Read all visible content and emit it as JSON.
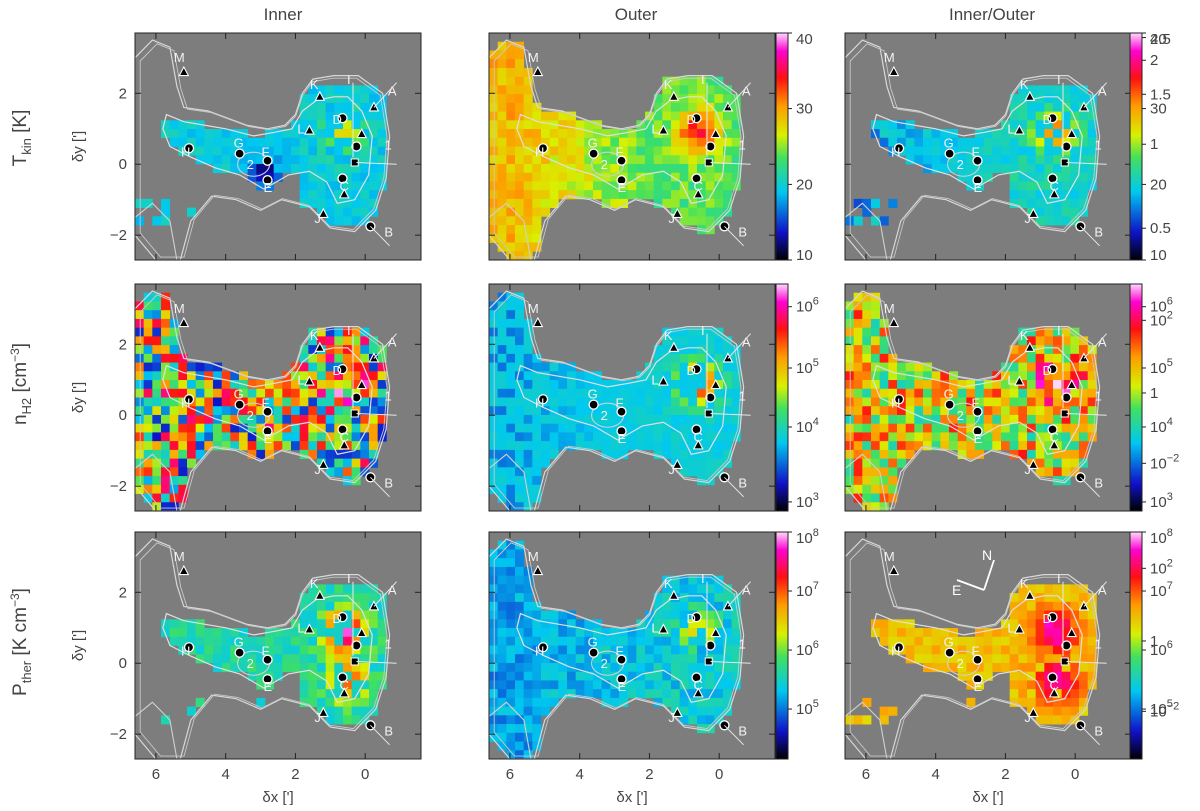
{
  "column_titles": [
    "Inner",
    "Outer",
    "Inner/Outer"
  ],
  "row_labels": [
    {
      "base": "T",
      "sub": "kin",
      "unit": "[K]"
    },
    {
      "base": "n",
      "sub": "H2",
      "unit": "[cm",
      "unit_sup": "−3",
      "unit_end": "]"
    },
    {
      "base": "P",
      "sub": "ther",
      "unit": "[K cm",
      "unit_sup": "−3",
      "unit_end": "]"
    }
  ],
  "axes": {
    "xlabel": "δx [']",
    "ylabel": "δy [']",
    "x_ticks": [
      "6",
      "4",
      "2",
      "0"
    ],
    "y_ticks": [
      "2",
      "0",
      "−2"
    ]
  },
  "colorbars": [
    [
      {
        "scale": "linear",
        "ticks": [
          {
            "v": "40",
            "f": 0.0
          },
          {
            "v": "30",
            "f": 0.333
          },
          {
            "v": "20",
            "f": 0.667
          },
          {
            "v": "10",
            "f": 1.0
          }
        ]
      },
      {
        "scale": "linear",
        "ticks": [
          {
            "v": "40",
            "f": 0.0
          },
          {
            "v": "30",
            "f": 0.333
          },
          {
            "v": "20",
            "f": 0.667
          },
          {
            "v": "10",
            "f": 1.0
          }
        ]
      },
      {
        "scale": "log",
        "ticks": [
          {
            "v": "2.5",
            "f": 0.02
          },
          {
            "v": "2",
            "f": 0.12
          },
          {
            "v": "1.5",
            "f": 0.27
          },
          {
            "v": "1",
            "f": 0.49
          },
          {
            "v": "0.5",
            "f": 0.86
          }
        ]
      }
    ],
    [
      {
        "scale": "log",
        "ticks": [
          {
            "v": "10",
            "sup": "6",
            "f": 0.1
          },
          {
            "v": "10",
            "sup": "5",
            "f": 0.37
          },
          {
            "v": "10",
            "sup": "4",
            "f": 0.63
          },
          {
            "v": "10",
            "sup": "3",
            "f": 0.96
          }
        ]
      },
      {
        "scale": "log",
        "ticks": [
          {
            "v": "10",
            "sup": "6",
            "f": 0.1
          },
          {
            "v": "10",
            "sup": "5",
            "f": 0.37
          },
          {
            "v": "10",
            "sup": "4",
            "f": 0.63
          },
          {
            "v": "10",
            "sup": "3",
            "f": 0.96
          }
        ]
      },
      {
        "scale": "log",
        "ticks": [
          {
            "v": "10",
            "sup": "2",
            "f": 0.16
          },
          {
            "v": "1",
            "f": 0.48
          },
          {
            "v": "10",
            "sup": "−2",
            "f": 0.79
          }
        ]
      }
    ],
    [
      {
        "scale": "log",
        "ticks": [
          {
            "v": "10",
            "sup": "8",
            "f": 0.0
          },
          {
            "v": "10",
            "sup": "7",
            "f": 0.26
          },
          {
            "v": "10",
            "sup": "6",
            "f": 0.52
          },
          {
            "v": "10",
            "sup": "5",
            "f": 0.78
          }
        ]
      },
      {
        "scale": "log",
        "ticks": [
          {
            "v": "10",
            "sup": "8",
            "f": 0.0
          },
          {
            "v": "10",
            "sup": "7",
            "f": 0.26
          },
          {
            "v": "10",
            "sup": "6",
            "f": 0.52
          },
          {
            "v": "10",
            "sup": "5",
            "f": 0.78
          }
        ]
      },
      {
        "scale": "log",
        "ticks": [
          {
            "v": "10",
            "sup": "2",
            "f": 0.16
          },
          {
            "v": "1",
            "f": 0.48
          },
          {
            "v": "10",
            "sup": "−2",
            "f": 0.79
          }
        ]
      }
    ]
  ],
  "compass": {
    "north": "N",
    "east": "E"
  },
  "chart_data": {
    "type": "heatmap",
    "x_range": [
      6.6,
      -1.6
    ],
    "y_range": [
      -2.7,
      3.7
    ],
    "columns": [
      "Inner",
      "Outer",
      "Inner/Outer"
    ],
    "rows": [
      "T_kin [K]",
      "n_H2 [cm^-3]",
      "P_ther [K cm^-3]"
    ],
    "colorbar_ranges": [
      [
        [
          10,
          40
        ],
        [
          10,
          40
        ],
        [
          0.4,
          2.6
        ]
      ],
      [
        [
          1000,
          2000000
        ],
        [
          1000,
          2000000
        ],
        [
          0.001,
          500
        ]
      ],
      [
        [
          30000,
          100000000
        ],
        [
          30000,
          100000000
        ],
        [
          0.001,
          500
        ]
      ]
    ],
    "markers": [
      {
        "label": "A",
        "x": -0.25,
        "y": 1.6,
        "symbol": "triangle"
      },
      {
        "label": "B",
        "x": -0.15,
        "y": -1.75,
        "symbol": "circle"
      },
      {
        "label": "C",
        "x": 0.65,
        "y": -0.4,
        "symbol": "circle"
      },
      {
        "label": "D",
        "x": 0.65,
        "y": 1.3,
        "symbol": "circle"
      },
      {
        "label": "E",
        "x": 2.8,
        "y": -0.45,
        "symbol": "circle"
      },
      {
        "label": "F",
        "x": 2.8,
        "y": 0.1,
        "symbol": "circle"
      },
      {
        "label": "G",
        "x": 3.6,
        "y": 0.3,
        "symbol": "circle"
      },
      {
        "label": "H",
        "x": 5.05,
        "y": 0.45,
        "symbol": "circle"
      },
      {
        "label": "I",
        "x": 0.35,
        "y": 2.1,
        "symbol": "none"
      },
      {
        "label": "J",
        "x": 1.2,
        "y": -1.4,
        "symbol": "triangle"
      },
      {
        "label": "K",
        "x": 1.3,
        "y": 1.9,
        "symbol": "triangle"
      },
      {
        "label": "L",
        "x": 1.6,
        "y": 0.95,
        "symbol": "triangle"
      },
      {
        "label": "M",
        "x": 5.2,
        "y": 2.6,
        "symbol": "triangle"
      },
      {
        "label": "1",
        "x": 0.25,
        "y": 0.5,
        "symbol": "circle"
      },
      {
        "label": "1b",
        "x": 0.3,
        "y": 0.05,
        "symbol": "square"
      },
      {
        "label": "2",
        "x": 3.2,
        "y": 0.0,
        "symbol": "none"
      },
      {
        "label": "c1",
        "x": 0.1,
        "y": 0.85,
        "symbol": "triangle"
      },
      {
        "label": "c2",
        "x": 0.6,
        "y": -0.85,
        "symbol": "triangle"
      }
    ],
    "visible_labels": [
      "A",
      "B",
      "C",
      "D",
      "E",
      "F",
      "G",
      "H",
      "I",
      "J",
      "K",
      "L",
      "M",
      "1",
      "2"
    ]
  }
}
